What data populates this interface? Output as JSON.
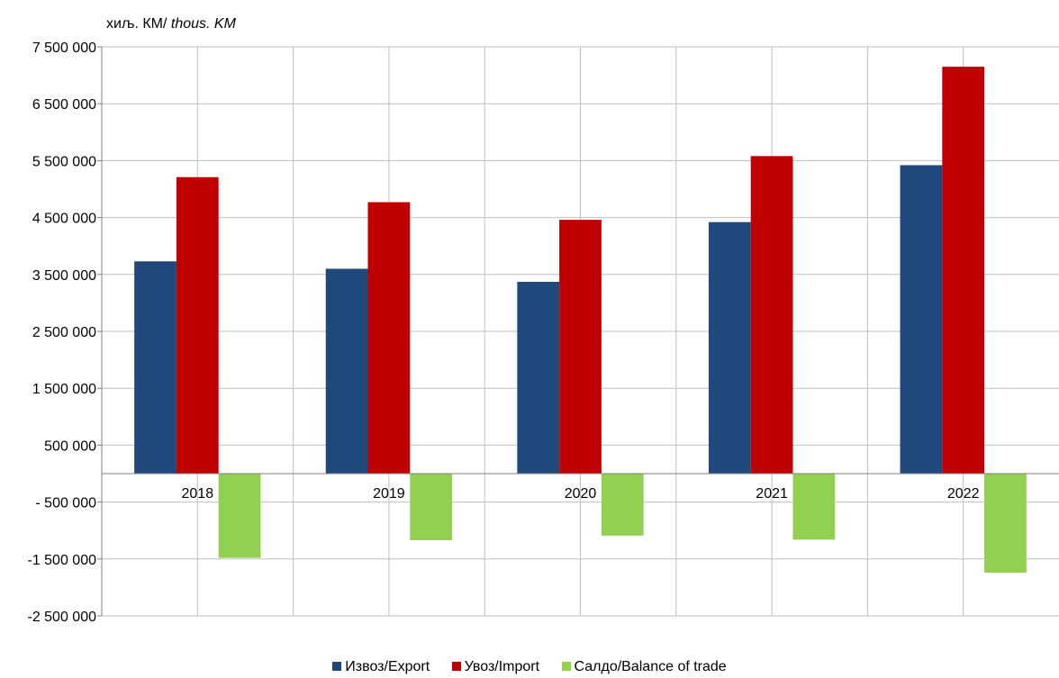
{
  "unit_label": {
    "main": "хиљ. КМ/ ",
    "italic": "thous. KM"
  },
  "colors": {
    "export": "#1f497d",
    "import": "#c00000",
    "balance": "#92d050",
    "grid": "#bfbfbf",
    "axis": "#808080"
  },
  "chart_data": {
    "type": "bar",
    "categories": [
      "2018",
      "2019",
      "2020",
      "2021",
      "2022"
    ],
    "series": [
      {
        "name": "Извоз/Export",
        "values": [
          3730000,
          3600000,
          3370000,
          4420000,
          5420000
        ]
      },
      {
        "name": "Увоз/Import",
        "values": [
          5210000,
          4770000,
          4460000,
          5580000,
          7150000
        ]
      },
      {
        "name": "Салдо/Balance of trade",
        "values": [
          -1480000,
          -1170000,
          -1090000,
          -1160000,
          -1740000
        ]
      }
    ],
    "yticks": [
      7500000,
      6500000,
      5500000,
      4500000,
      3500000,
      2500000,
      1500000,
      500000,
      -500000,
      -1500000,
      -2500000
    ],
    "ytick_labels": [
      "7 500 000",
      "6 500 000",
      "5 500 000",
      "4 500 000",
      "3 500 000",
      "2 500 000",
      "1 500 000",
      "500 000",
      "- 500 000",
      "-1 500 000",
      "-2 500 000"
    ],
    "ylim": [
      -2500000,
      7500000
    ],
    "grid": true,
    "legend_position": "bottom"
  }
}
